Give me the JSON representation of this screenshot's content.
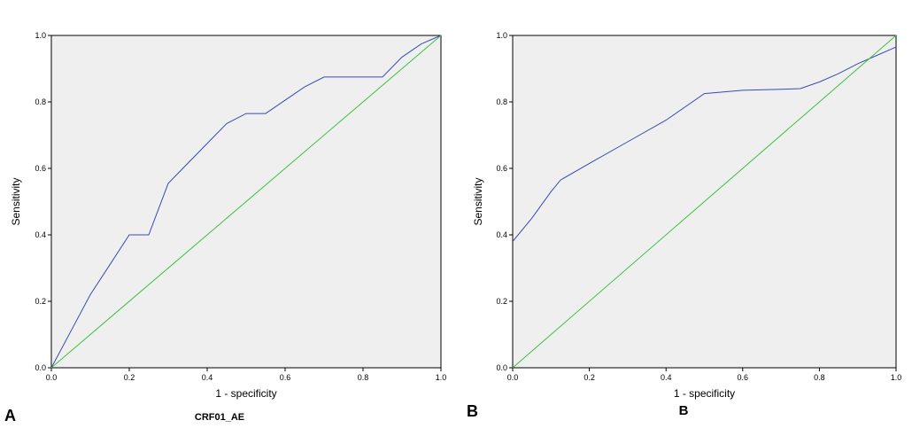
{
  "chart_data": [
    {
      "type": "line",
      "panel_label": "A",
      "caption": "CRF01_AE",
      "xlabel": "1 - specificity",
      "ylabel": "Sensitivity",
      "xlim": [
        0,
        1
      ],
      "ylim": [
        0,
        1
      ],
      "xticks": [
        "0.0",
        "0.2",
        "0.4",
        "0.6",
        "0.8",
        "1.0"
      ],
      "yticks": [
        "0.0",
        "0.2",
        "0.4",
        "0.6",
        "0.8",
        "1.0"
      ],
      "grid": false,
      "background": "#efefef",
      "series": [
        {
          "color": "#3b4bb5",
          "x": [
            0,
            0.05,
            0.1,
            0.15,
            0.2,
            0.25,
            0.3,
            0.35,
            0.4,
            0.45,
            0.5,
            0.55,
            0.6,
            0.65,
            0.7,
            0.75,
            0.8,
            0.85,
            0.9,
            0.95,
            1.0
          ],
          "y": [
            0,
            0.11,
            0.22,
            0.31,
            0.4,
            0.4,
            0.555,
            0.615,
            0.675,
            0.735,
            0.765,
            0.765,
            0.805,
            0.845,
            0.875,
            0.875,
            0.875,
            0.875,
            0.935,
            0.975,
            1.0
          ]
        },
        {
          "color": "#3cc23c",
          "x": [
            0,
            1
          ],
          "y": [
            0,
            1
          ]
        }
      ]
    },
    {
      "type": "line",
      "panel_label": "B",
      "caption": "B",
      "xlabel": "1 - specificity",
      "ylabel": "Sensitivity",
      "xlim": [
        0,
        1
      ],
      "ylim": [
        0,
        1
      ],
      "xticks": [
        "0.0",
        "0.2",
        "0.4",
        "0.6",
        "0.8",
        "1.0"
      ],
      "yticks": [
        "0.0",
        "0.2",
        "0.4",
        "0.6",
        "0.8",
        "1.0"
      ],
      "grid": false,
      "background": "#efefef",
      "series": [
        {
          "color": "#3b4bb5",
          "x": [
            0,
            0.05,
            0.1,
            0.125,
            0.2,
            0.3,
            0.4,
            0.5,
            0.6,
            0.7,
            0.75,
            0.8,
            0.85,
            0.9,
            0.95,
            1.0
          ],
          "y": [
            0.38,
            0.45,
            0.53,
            0.565,
            0.615,
            0.68,
            0.745,
            0.825,
            0.835,
            0.838,
            0.84,
            0.86,
            0.885,
            0.915,
            0.94,
            0.965
          ]
        },
        {
          "color": "#3cc23c",
          "x": [
            0,
            1
          ],
          "y": [
            0,
            1
          ]
        }
      ]
    }
  ]
}
